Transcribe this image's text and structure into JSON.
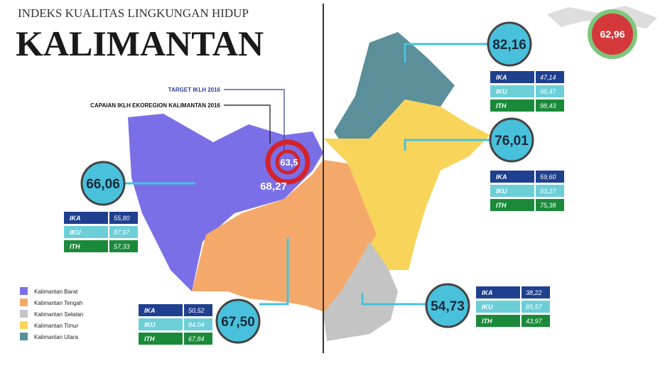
{
  "header": {
    "subtitle": "INDEKS KUALITAS LINGKUNGAN HIDUP",
    "title": "KALIMANTAN"
  },
  "target": {
    "label": "TARGET IKLH 2016",
    "value": "63,5"
  },
  "achievement": {
    "label": "CAPAIAN IKLH EKOREGION KALIMANTAN 2016",
    "value": "68,27"
  },
  "national": {
    "value": "62,96"
  },
  "regions": [
    {
      "name": "Kalimantan Barat",
      "score": "66,06",
      "rows": [
        {
          "label": "IKA",
          "value": "55,80"
        },
        {
          "label": "IKU",
          "value": "87,97"
        },
        {
          "label": "ITH",
          "value": "57,33"
        }
      ]
    },
    {
      "name": "Kalimantan Tengah",
      "score": "67,50",
      "rows": [
        {
          "label": "IKA",
          "value": "50,52"
        },
        {
          "label": "IKU",
          "value": "84,04"
        },
        {
          "label": "ITH",
          "value": "67,84"
        }
      ]
    },
    {
      "name": "Kalimantan Selatan",
      "score": "54,73",
      "rows": [
        {
          "label": "IKA",
          "value": "38,22"
        },
        {
          "label": "IKU",
          "value": "85,57"
        },
        {
          "label": "ITH",
          "value": "43,97"
        }
      ]
    },
    {
      "name": "Kalimantan Timur",
      "score": "76,01",
      "rows": [
        {
          "label": "IKA",
          "value": "59,60"
        },
        {
          "label": "IKU",
          "value": "93,27"
        },
        {
          "label": "ITH",
          "value": "75,38"
        }
      ]
    },
    {
      "name": "Kalimantan Utara",
      "score": "82,16",
      "rows": [
        {
          "label": "IKA",
          "value": "47,14"
        },
        {
          "label": "IKU",
          "value": "95,47"
        },
        {
          "label": "ITH",
          "value": "98,43"
        }
      ]
    }
  ]
}
